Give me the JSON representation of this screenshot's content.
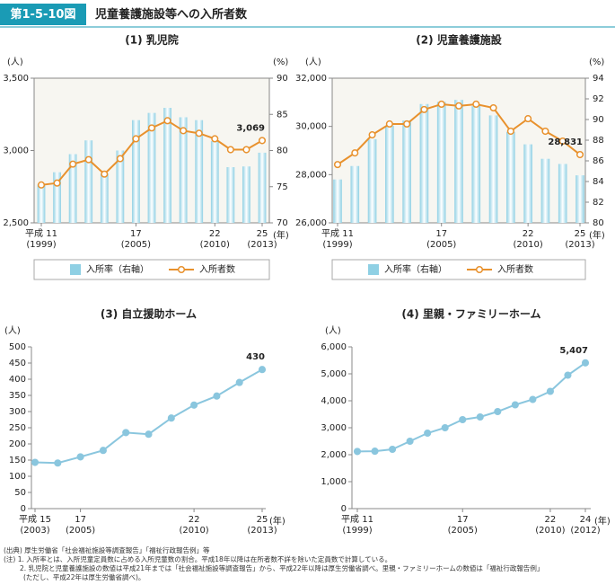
{
  "header": {
    "badge": "第1-5-10図",
    "title": "児童養護施設等への入所者数"
  },
  "chart_data": [
    {
      "type": "combo",
      "title": "(1) 乳児院",
      "ylabel": "(人)",
      "y2label": "(%)",
      "xlabel": "(年)",
      "x": [
        1999,
        2000,
        2001,
        2002,
        2003,
        2004,
        2005,
        2006,
        2007,
        2008,
        2009,
        2010,
        2011,
        2012,
        2013
      ],
      "xticks": [
        {
          "value": 1999,
          "label": [
            "平成 11",
            "(1999)"
          ]
        },
        {
          "value": 2005,
          "label": [
            "17",
            "(2005)"
          ]
        },
        {
          "value": 2010,
          "label": [
            "22",
            "(2010)"
          ]
        },
        {
          "value": 2013,
          "label": [
            "25",
            "(2013)"
          ]
        }
      ],
      "ylim": [
        2500,
        3500
      ],
      "yticks": [
        {
          "value": 2500,
          "label": "2,500"
        },
        {
          "value": 3000,
          "label": "3,000"
        },
        {
          "value": 3500,
          "label": "3,500"
        }
      ],
      "y2lim": [
        70,
        90
      ],
      "y2ticks": [
        70,
        75,
        80,
        85,
        90
      ],
      "legend": true,
      "series": [
        {
          "name": "入所率（右軸）",
          "type": "bar",
          "axis": "y2",
          "color": "#8fd0e4",
          "values": [
            75.3,
            77.0,
            79.5,
            81.4,
            76.8,
            80.0,
            84.2,
            85.2,
            85.9,
            84.6,
            84.2,
            81.3,
            77.7,
            77.8,
            79.7
          ]
        },
        {
          "name": "入所者数",
          "type": "line",
          "color": "#e8912d",
          "values": [
            2762,
            2775,
            2906,
            2937,
            2837,
            2944,
            3081,
            3156,
            3206,
            3137,
            3119,
            3081,
            3006,
            3006,
            3069
          ],
          "value_labels": [
            null,
            null,
            null,
            null,
            null,
            null,
            null,
            null,
            null,
            null,
            null,
            null,
            null,
            null,
            "3,069"
          ]
        }
      ]
    },
    {
      "type": "combo",
      "title": "(2) 児童養護施設",
      "ylabel": "(人)",
      "y2label": "(%)",
      "xlabel": "(年)",
      "x": [
        1999,
        2000,
        2001,
        2002,
        2003,
        2004,
        2005,
        2006,
        2007,
        2008,
        2009,
        2010,
        2011,
        2012,
        2013
      ],
      "xticks": [
        {
          "value": 1999,
          "label": [
            "平成 11",
            "(1999)"
          ]
        },
        {
          "value": 2005,
          "label": [
            "17",
            "(2005)"
          ]
        },
        {
          "value": 2010,
          "label": [
            "22",
            "(2010)"
          ]
        },
        {
          "value": 2013,
          "label": [
            "25",
            "(2013)"
          ]
        }
      ],
      "ylim": [
        26000,
        32000
      ],
      "yticks": [
        {
          "value": 26000,
          "label": "26,000"
        },
        {
          "value": 28000,
          "label": "28,000"
        },
        {
          "value": 30000,
          "label": "30,000"
        },
        {
          "value": 32000,
          "label": "32,000"
        }
      ],
      "y2lim": [
        80,
        94
      ],
      "y2ticks": [
        80,
        82,
        84,
        86,
        88,
        90,
        92,
        94
      ],
      "legend": true,
      "series": [
        {
          "name": "入所率（右軸）",
          "type": "bar",
          "axis": "y2",
          "color": "#8fd0e4",
          "values": [
            84.2,
            85.5,
            88.1,
            89.4,
            89.9,
            91.5,
            91.7,
            91.9,
            91.3,
            90.4,
            88.8,
            87.6,
            86.2,
            85.7,
            84.6
          ]
        },
        {
          "name": "入所者数",
          "type": "line",
          "color": "#e8912d",
          "values": [
            28418,
            28900,
            29650,
            30100,
            30100,
            30700,
            30920,
            30850,
            30920,
            30770,
            29800,
            30320,
            29800,
            29390,
            28831
          ],
          "value_labels": [
            null,
            null,
            null,
            null,
            null,
            null,
            null,
            null,
            null,
            null,
            null,
            null,
            null,
            null,
            "28,831"
          ]
        }
      ]
    },
    {
      "type": "line",
      "title": "(3) 自立援助ホーム",
      "ylabel": "(人)",
      "xlabel": "(年)",
      "x": [
        2003,
        2004,
        2005,
        2006,
        2007,
        2008,
        2009,
        2010,
        2011,
        2012,
        2013
      ],
      "xticks": [
        {
          "value": 2003,
          "label": [
            "平成 15",
            "(2003)"
          ]
        },
        {
          "value": 2005,
          "label": [
            "17",
            "(2005)"
          ]
        },
        {
          "value": 2010,
          "label": [
            "22",
            "(2010)"
          ]
        },
        {
          "value": 2013,
          "label": [
            "25",
            "(2013)"
          ]
        }
      ],
      "ylim": [
        0,
        500
      ],
      "yticks": [
        0,
        50,
        100,
        150,
        200,
        250,
        300,
        350,
        400,
        450,
        500
      ],
      "color": "#8ac6de",
      "values": [
        143,
        141,
        160,
        180,
        235,
        230,
        280,
        320,
        348,
        390,
        430
      ],
      "value_labels": [
        null,
        null,
        null,
        null,
        null,
        null,
        null,
        null,
        null,
        null,
        "430"
      ]
    },
    {
      "type": "line",
      "title": "(4) 里親・ファミリーホーム",
      "ylabel": "(人)",
      "xlabel": "(年)",
      "x": [
        1999,
        2000,
        2001,
        2002,
        2003,
        2004,
        2005,
        2006,
        2007,
        2008,
        2009,
        2010,
        2011,
        2012
      ],
      "xticks": [
        {
          "value": 1999,
          "label": [
            "平成 11",
            "(1999)"
          ]
        },
        {
          "value": 2005,
          "label": [
            "17",
            "(2005)"
          ]
        },
        {
          "value": 2010,
          "label": [
            "22",
            "(2010)"
          ]
        },
        {
          "value": 2012,
          "label": [
            "24",
            "(2012)"
          ]
        }
      ],
      "ylim": [
        0,
        6000
      ],
      "yticks": [
        0,
        {
          "value": 1000,
          "label": "1,000"
        },
        {
          "value": 2000,
          "label": "2,000"
        },
        {
          "value": 3000,
          "label": "3,000"
        },
        {
          "value": 4000,
          "label": "4,000"
        },
        {
          "value": 5000,
          "label": "5,000"
        },
        {
          "value": 6000,
          "label": "6,000"
        }
      ],
      "color": "#8ac6de",
      "values": [
        2120,
        2130,
        2200,
        2500,
        2800,
        3000,
        3300,
        3400,
        3600,
        3850,
        4050,
        4350,
        4950,
        5407
      ],
      "value_labels": [
        null,
        null,
        null,
        null,
        null,
        null,
        null,
        null,
        null,
        null,
        null,
        null,
        null,
        "5,407"
      ]
    }
  ],
  "notes": [
    "(出典) 厚生労働省「社会福祉施設等調査報告」「福祉行政報告例」等",
    "(注) 1. 入所率とは、入所児童定員数に占める入所児童数の割合。平成18年以降は在所者数不詳を除いた定員数で計算している。",
    "2. 乳児院と児童養護施設の数値は平成21年までは「社会福祉施設等調査報告」から、平成22年以降は厚生労働省調べ。里親・ファミリーホームの数値は「福祉行政報告例」",
    "(ただし、平成22年は厚生労働省調べ)。"
  ]
}
